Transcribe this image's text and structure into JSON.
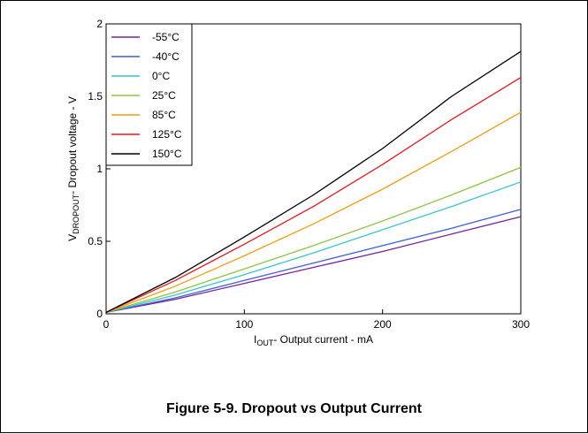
{
  "caption": "Figure 5-9. Dropout vs Output Current",
  "chart_data": {
    "type": "line",
    "xlabel": {
      "main": "I",
      "sub": "OUT",
      "rest": "- Output current - mA"
    },
    "ylabel": {
      "main": "V",
      "sub": "DROPOUT",
      "rest": "- Dropout voltage - V"
    },
    "xlim": [
      0,
      300
    ],
    "ylim": [
      0,
      2
    ],
    "xticks": [
      0,
      100,
      200,
      300
    ],
    "yticks": [
      0,
      0.5,
      1,
      1.5,
      2
    ],
    "ytick_labels": [
      "0",
      "0.5",
      "1",
      "1.5",
      "2"
    ],
    "grid": false,
    "legend_position": "top-left",
    "x": [
      0,
      50,
      100,
      150,
      200,
      250,
      300
    ],
    "series": [
      {
        "name": "-55°C",
        "color": "#7b1fa2",
        "values": [
          0.01,
          0.1,
          0.21,
          0.32,
          0.43,
          0.55,
          0.67
        ]
      },
      {
        "name": "-40°C",
        "color": "#3f5fd8",
        "values": [
          0.01,
          0.11,
          0.23,
          0.35,
          0.47,
          0.59,
          0.72
        ]
      },
      {
        "name": "0°C",
        "color": "#37c6cc",
        "values": [
          0.01,
          0.13,
          0.27,
          0.42,
          0.58,
          0.74,
          0.91
        ]
      },
      {
        "name": "25°C",
        "color": "#8cc63e",
        "values": [
          0.01,
          0.15,
          0.31,
          0.47,
          0.64,
          0.82,
          1.01
        ]
      },
      {
        "name": "85°C",
        "color": "#f39c12",
        "values": [
          0.01,
          0.19,
          0.4,
          0.62,
          0.86,
          1.12,
          1.39
        ]
      },
      {
        "name": "125°C",
        "color": "#e8171a",
        "values": [
          0.01,
          0.23,
          0.48,
          0.74,
          1.03,
          1.34,
          1.63
        ]
      },
      {
        "name": "150°C",
        "color": "#000000",
        "values": [
          0.01,
          0.25,
          0.53,
          0.82,
          1.14,
          1.5,
          1.81
        ]
      }
    ]
  }
}
